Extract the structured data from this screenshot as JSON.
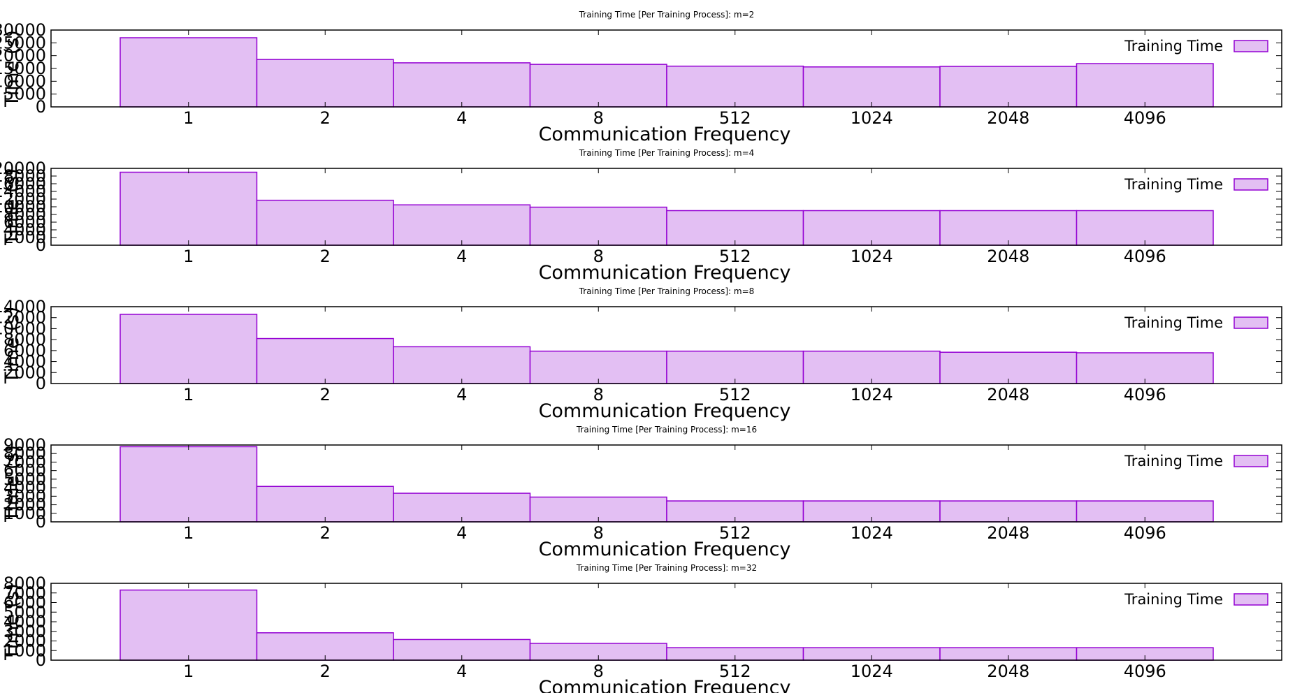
{
  "chart_data": [
    {
      "type": "bar",
      "title": "Training Time [Per Training Process]: m=2",
      "xlabel": "Communication Frequency",
      "ylabel": "Time (s)",
      "legend": {
        "label": "Training Time",
        "position": "top-right"
      },
      "categories": [
        "1",
        "2",
        "4",
        "8",
        "512",
        "1024",
        "2048",
        "4096"
      ],
      "series": [
        {
          "name": "Training Time",
          "values": [
            27000,
            18500,
            17200,
            16600,
            15900,
            15600,
            15800,
            16900
          ]
        }
      ],
      "ylim": [
        0,
        30000
      ],
      "yticks": [
        0,
        5000,
        10000,
        15000,
        20000,
        25000,
        30000
      ],
      "grid": false
    },
    {
      "type": "bar",
      "title": "Training Time [Per Training Process]: m=4",
      "xlabel": "Communication Frequency",
      "ylabel": "Time (s)",
      "legend": {
        "label": "Training Time",
        "position": "top-right"
      },
      "categories": [
        "1",
        "2",
        "4",
        "8",
        "512",
        "1024",
        "2048",
        "4096"
      ],
      "series": [
        {
          "name": "Training Time",
          "values": [
            19000,
            11700,
            10500,
            9900,
            9000,
            9000,
            9000,
            9000
          ]
        }
      ],
      "ylim": [
        0,
        20000
      ],
      "yticks": [
        0,
        2000,
        4000,
        6000,
        8000,
        10000,
        12000,
        14000,
        16000,
        18000,
        20000
      ],
      "grid": false
    },
    {
      "type": "bar",
      "title": "Training Time [Per Training Process]: m=8",
      "xlabel": "Communication Frequency",
      "ylabel": "Time (s)",
      "legend": {
        "label": "Training Time",
        "position": "top-right"
      },
      "categories": [
        "1",
        "2",
        "4",
        "8",
        "512",
        "1024",
        "2048",
        "4096"
      ],
      "series": [
        {
          "name": "Training Time",
          "values": [
            12600,
            8200,
            6700,
            5900,
            5900,
            5900,
            5700,
            5600
          ]
        }
      ],
      "ylim": [
        0,
        14000
      ],
      "yticks": [
        0,
        2000,
        4000,
        6000,
        8000,
        10000,
        12000,
        14000
      ],
      "grid": false
    },
    {
      "type": "bar",
      "title": "Training Time [Per Training Process]: m=16",
      "xlabel": "Communication Frequency",
      "ylabel": "Time (s)",
      "legend": {
        "label": "Training Time",
        "position": "top-right"
      },
      "categories": [
        "1",
        "2",
        "4",
        "8",
        "512",
        "1024",
        "2048",
        "4096"
      ],
      "series": [
        {
          "name": "Training Time",
          "values": [
            8800,
            4150,
            3350,
            2900,
            2450,
            2450,
            2450,
            2450
          ]
        }
      ],
      "ylim": [
        0,
        9000
      ],
      "yticks": [
        0,
        1000,
        2000,
        3000,
        4000,
        5000,
        6000,
        7000,
        8000,
        9000
      ],
      "grid": false
    },
    {
      "type": "bar",
      "title": "Training Time [Per Training Process]: m=32",
      "xlabel": "Communication Frequency",
      "ylabel": "Time (s)",
      "legend": {
        "label": "Training Time",
        "position": "top-right"
      },
      "categories": [
        "1",
        "2",
        "4",
        "8",
        "512",
        "1024",
        "2048",
        "4096"
      ],
      "series": [
        {
          "name": "Training Time",
          "values": [
            7300,
            2850,
            2150,
            1750,
            1300,
            1300,
            1300,
            1300
          ]
        }
      ],
      "ylim": [
        0,
        8000
      ],
      "yticks": [
        0,
        1000,
        2000,
        3000,
        4000,
        5000,
        6000,
        7000,
        8000
      ],
      "grid": false
    }
  ],
  "colors": {
    "bar_fill": "#e3bff3",
    "bar_stroke": "#9400d3",
    "axis": "#000000"
  }
}
